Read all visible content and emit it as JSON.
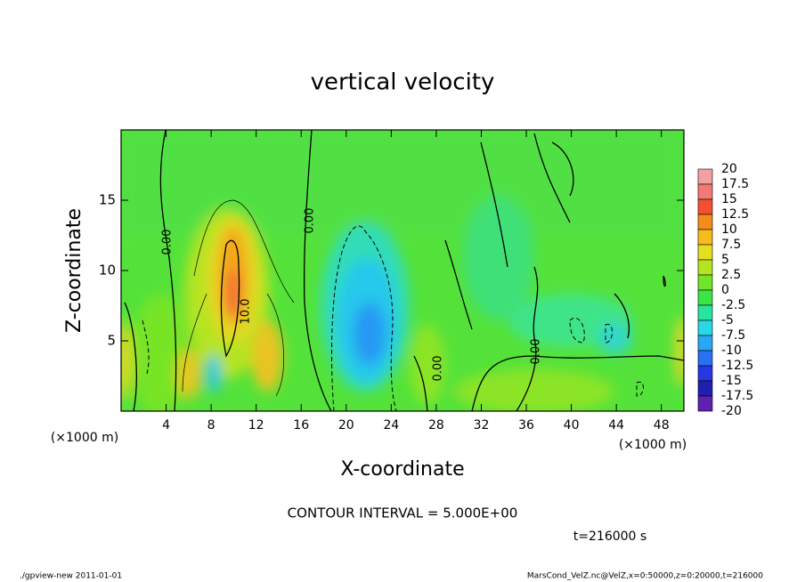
{
  "chart_data": {
    "type": "contour",
    "title": "vertical velocity",
    "x_label": "X-coordinate",
    "y_label": "Z-coordinate",
    "x_unit_labels": [
      "(×1000 m)",
      "(×1000 m)"
    ],
    "xlim": [
      0,
      50
    ],
    "xticks": [
      4,
      8,
      12,
      16,
      20,
      24,
      28,
      32,
      36,
      40,
      44,
      48
    ],
    "ylim": [
      0,
      20
    ],
    "yticks": [
      5,
      10,
      15
    ],
    "contour_labels": [
      "0.00",
      "0.00",
      "10.0",
      "0.00",
      "0.00"
    ],
    "colorbar": {
      "levels": [
        20,
        17.5,
        15,
        12.5,
        10,
        7.5,
        5,
        2.5,
        0,
        -2.5,
        -5,
        -7.5,
        -10,
        -12.5,
        -15,
        -17.5,
        -20
      ],
      "colors": [
        "#f4a0a0",
        "#f47878",
        "#f45030",
        "#f48c1c",
        "#f4bc1c",
        "#e4e020",
        "#b4e420",
        "#74e428",
        "#3ce444",
        "#28e4a0",
        "#28d8e4",
        "#28a8f4",
        "#2870f4",
        "#2838e0",
        "#2020b0",
        "#6020b0"
      ]
    },
    "contour_interval": "CONTOUR INTERVAL = 5.000E+00",
    "time_label": "t=216000 s",
    "footer_left": "./gpview-new   2011-01-01",
    "footer_right": "MarsCond_VelZ.nc@VelZ,x=0:50000,z=0:20000,t=216000"
  }
}
